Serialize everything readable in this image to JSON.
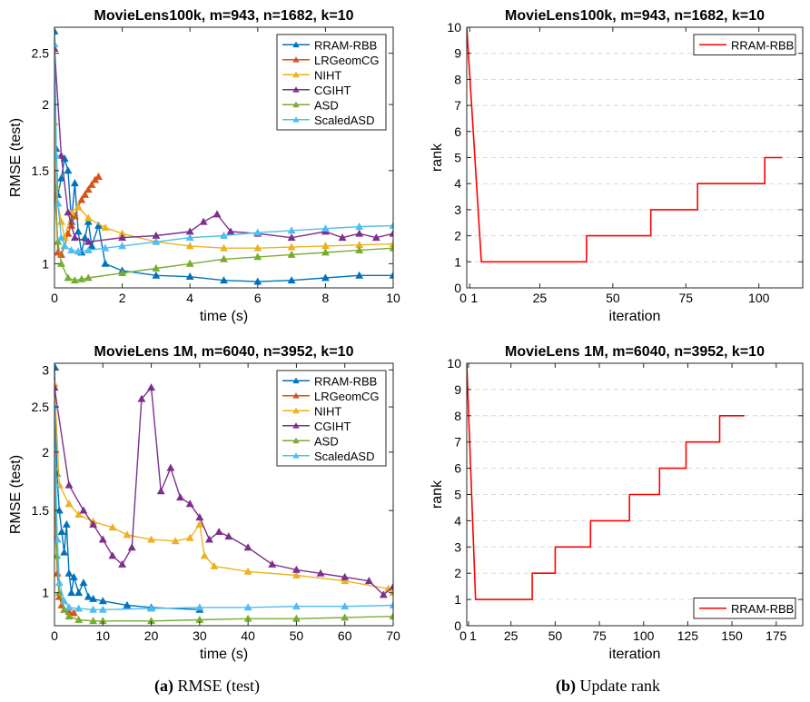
{
  "colors": {
    "RRAM-RBB": "#0072BD",
    "LRGeomCG": "#D95319",
    "NIHT": "#EDB120",
    "CGIHT": "#7E2F8E",
    "ASD": "#77AC30",
    "ScaledASD": "#4DBEEE",
    "rank_line": "#FF0000"
  },
  "captions": {
    "a_label": "(a)",
    "a_text": " RMSE (test)",
    "b_label": "(b)",
    "b_text": " Update rank"
  },
  "chart_data": [
    {
      "id": "rmse100k",
      "type": "line",
      "title": "MovieLens100k, m=943, n=1682, k=10",
      "xlabel": "time (s)",
      "ylabel": "RMSE (test)",
      "xlim": [
        0,
        10
      ],
      "ylim": [
        0.9,
        2.8
      ],
      "yscale": "log",
      "xticks": [
        0,
        2,
        4,
        6,
        8,
        10
      ],
      "xtick_labels": [
        "0",
        "2",
        "4",
        "6",
        "8",
        "10"
      ],
      "yticks": [
        1,
        1.5,
        2,
        2.5
      ],
      "ytick_labels": [
        "1",
        "1.5",
        "2",
        "2.5"
      ],
      "marker": "triangle",
      "legend_position": "top-right",
      "legend": [
        "RRAM-RBB",
        "LRGeomCG",
        "NIHT",
        "CGIHT",
        "ASD",
        "ScaledASD"
      ],
      "series": [
        {
          "name": "RRAM-RBB",
          "x": [
            0,
            0.05,
            0.1,
            0.2,
            0.3,
            0.4,
            0.5,
            0.6,
            0.7,
            0.8,
            0.9,
            1.0,
            1.1,
            1.3,
            1.5,
            2,
            3,
            4,
            5,
            6,
            7,
            8,
            9,
            10
          ],
          "y": [
            2.75,
            1.65,
            1.35,
            1.45,
            1.58,
            1.5,
            1.2,
            1.42,
            1.15,
            1.05,
            1.12,
            1.2,
            1.08,
            1.18,
            1.0,
            0.97,
            0.95,
            0.945,
            0.93,
            0.925,
            0.93,
            0.94,
            0.95,
            0.95
          ]
        },
        {
          "name": "LRGeomCG",
          "x": [
            0,
            0.1,
            0.2,
            0.3,
            0.4,
            0.5,
            0.6,
            0.7,
            0.8,
            0.9,
            1.0,
            1.1,
            1.2,
            1.3
          ],
          "y": [
            1.6,
            1.05,
            1.04,
            1.08,
            1.14,
            1.18,
            1.23,
            1.28,
            1.32,
            1.35,
            1.38,
            1.41,
            1.44,
            1.46
          ]
        },
        {
          "name": "NIHT",
          "x": [
            0,
            0.05,
            0.1,
            0.2,
            0.3,
            0.5,
            0.7,
            1,
            1.5,
            2,
            3,
            4,
            5,
            6,
            7,
            8,
            9,
            10
          ],
          "y": [
            1.85,
            1.4,
            1.3,
            1.2,
            1.12,
            1.25,
            1.28,
            1.22,
            1.17,
            1.14,
            1.1,
            1.08,
            1.07,
            1.07,
            1.075,
            1.08,
            1.085,
            1.09
          ]
        },
        {
          "name": "CGIHT",
          "x": [
            0,
            0.2,
            0.4,
            0.6,
            1,
            2,
            3,
            4,
            4.4,
            4.8,
            5.2,
            6,
            7,
            8,
            8.5,
            9,
            9.5,
            10
          ],
          "y": [
            2.55,
            1.6,
            1.25,
            1.12,
            1.1,
            1.12,
            1.13,
            1.15,
            1.2,
            1.24,
            1.15,
            1.14,
            1.12,
            1.15,
            1.12,
            1.14,
            1.12,
            1.14
          ]
        },
        {
          "name": "ASD",
          "x": [
            0,
            0.1,
            0.2,
            0.4,
            0.6,
            0.8,
            1,
            2,
            3,
            4,
            5,
            6,
            7,
            8,
            9,
            10
          ],
          "y": [
            1.4,
            1.1,
            1.0,
            0.94,
            0.93,
            0.935,
            0.94,
            0.96,
            0.98,
            1.0,
            1.02,
            1.03,
            1.04,
            1.05,
            1.06,
            1.07
          ]
        },
        {
          "name": "ScaledASD",
          "x": [
            0,
            0.05,
            0.1,
            0.2,
            0.3,
            0.5,
            0.7,
            1,
            1.5,
            2,
            3,
            4,
            5,
            6,
            7,
            8,
            9,
            10
          ],
          "y": [
            2.6,
            1.6,
            1.3,
            1.12,
            1.08,
            1.06,
            1.055,
            1.06,
            1.07,
            1.08,
            1.1,
            1.12,
            1.13,
            1.145,
            1.155,
            1.165,
            1.175,
            1.18
          ]
        }
      ]
    },
    {
      "id": "rank100k",
      "type": "line",
      "title": "MovieLens100k, m=943, n=1682, k=10",
      "xlabel": "iteration",
      "ylabel": "rank",
      "xlim": [
        0,
        115
      ],
      "ylim": [
        0,
        10
      ],
      "xticks": [
        0,
        1,
        25,
        50,
        75,
        100
      ],
      "xtick_labels": [
        "0",
        "1",
        "25",
        "50",
        "75",
        "100"
      ],
      "yticks": [
        0,
        1,
        2,
        3,
        4,
        5,
        6,
        7,
        8,
        9,
        10
      ],
      "ytick_labels": [
        "0",
        "1",
        "2",
        "3",
        "4",
        "5",
        "6",
        "7",
        "8",
        "9",
        "10"
      ],
      "grid": "horizontal dashed",
      "legend_position": "top-right",
      "legend": [
        "RRAM-RBB"
      ],
      "series": [
        {
          "name": "RRAM-RBB",
          "x": [
            0,
            5,
            41,
            41,
            63,
            63,
            79,
            79,
            102,
            102,
            108
          ],
          "y": [
            10,
            1,
            1,
            2,
            2,
            3,
            3,
            4,
            4,
            5,
            5
          ]
        }
      ]
    },
    {
      "id": "rmse1m",
      "type": "line",
      "title": "MovieLens 1M, m=6040, n=3952, k=10",
      "xlabel": "time (s)",
      "ylabel": "RMSE (test)",
      "xlim": [
        0,
        70
      ],
      "ylim": [
        0.85,
        3.1
      ],
      "yscale": "log",
      "xticks": [
        0,
        10,
        20,
        30,
        40,
        50,
        60,
        70
      ],
      "xtick_labels": [
        "0",
        "10",
        "20",
        "30",
        "40",
        "50",
        "60",
        "70"
      ],
      "yticks": [
        1,
        1.5,
        2,
        2.5,
        3
      ],
      "ytick_labels": [
        "1",
        "1.5",
        "2",
        "2.5",
        "3"
      ],
      "marker": "triangle",
      "legend_position": "top-right",
      "legend": [
        "RRAM-RBB",
        "LRGeomCG",
        "NIHT",
        "CGIHT",
        "ASD",
        "ScaledASD"
      ],
      "series": [
        {
          "name": "RRAM-RBB",
          "x": [
            0,
            0.5,
            1,
            1.5,
            2,
            2.5,
            3,
            3.5,
            4,
            5,
            6,
            7,
            8,
            10,
            15,
            20,
            30
          ],
          "y": [
            3.05,
            1.8,
            1.5,
            1.35,
            1.22,
            1.4,
            1.1,
            1.0,
            1.08,
            1.0,
            1.05,
            0.98,
            0.97,
            0.96,
            0.94,
            0.93,
            0.92
          ]
        },
        {
          "name": "LRGeomCG",
          "x": [
            0,
            0.3,
            0.6,
            1,
            1.5,
            2,
            3,
            4
          ],
          "y": [
            2.0,
            1.3,
            1.1,
            0.98,
            0.94,
            0.92,
            0.91,
            0.905
          ]
        },
        {
          "name": "NIHT",
          "x": [
            0,
            1,
            3,
            5,
            8,
            12,
            15,
            20,
            25,
            28,
            30,
            31,
            33,
            40,
            50,
            60,
            69,
            70
          ],
          "y": [
            2.8,
            1.7,
            1.55,
            1.47,
            1.42,
            1.38,
            1.33,
            1.3,
            1.29,
            1.31,
            1.4,
            1.2,
            1.14,
            1.11,
            1.09,
            1.06,
            1.02,
            1.0
          ]
        },
        {
          "name": "CGIHT",
          "x": [
            0,
            3,
            6,
            8,
            10,
            12,
            14,
            16,
            18,
            20,
            22,
            24,
            26,
            28,
            30,
            32,
            34,
            36,
            40,
            45,
            50,
            55,
            60,
            65,
            68,
            70
          ],
          "y": [
            2.75,
            1.7,
            1.5,
            1.4,
            1.3,
            1.2,
            1.15,
            1.25,
            2.6,
            2.75,
            1.65,
            1.85,
            1.6,
            1.55,
            1.45,
            1.3,
            1.35,
            1.32,
            1.25,
            1.15,
            1.12,
            1.1,
            1.08,
            1.06,
            0.99,
            1.03
          ]
        },
        {
          "name": "ASD",
          "x": [
            0,
            0.5,
            1,
            2,
            3,
            5,
            8,
            10,
            20,
            30,
            40,
            50,
            60,
            70
          ],
          "y": [
            1.85,
            1.2,
            1.0,
            0.92,
            0.89,
            0.875,
            0.87,
            0.87,
            0.87,
            0.875,
            0.88,
            0.88,
            0.885,
            0.89
          ]
        },
        {
          "name": "ScaledASD",
          "x": [
            0,
            0.3,
            0.6,
            1,
            2,
            3,
            5,
            8,
            10,
            20,
            30,
            40,
            50,
            60,
            70
          ],
          "y": [
            2.5,
            1.7,
            1.3,
            1.05,
            0.96,
            0.93,
            0.925,
            0.92,
            0.92,
            0.925,
            0.93,
            0.93,
            0.935,
            0.935,
            0.94
          ]
        }
      ]
    },
    {
      "id": "rank1m",
      "type": "line",
      "title": "MovieLens 1M, m=6040, n=3952, k=10",
      "xlabel": "iteration",
      "ylabel": "rank",
      "xlim": [
        0,
        190
      ],
      "ylim": [
        0,
        10
      ],
      "xticks": [
        0,
        1,
        25,
        50,
        75,
        100,
        125,
        150,
        175
      ],
      "xtick_labels": [
        "0",
        "1",
        "25",
        "50",
        "75",
        "100",
        "125",
        "150",
        "175"
      ],
      "yticks": [
        0,
        1,
        2,
        3,
        4,
        5,
        6,
        7,
        8,
        9,
        10
      ],
      "ytick_labels": [
        "0",
        "1",
        "2",
        "3",
        "4",
        "5",
        "6",
        "7",
        "8",
        "9",
        "10"
      ],
      "grid": "horizontal dashed",
      "legend_position": "bottom-right",
      "legend": [
        "RRAM-RBB"
      ],
      "series": [
        {
          "name": "RRAM-RBB",
          "x": [
            0,
            5,
            37,
            37,
            50,
            50,
            70,
            70,
            92,
            92,
            109,
            109,
            124,
            124,
            143,
            143,
            157
          ],
          "y": [
            10,
            1,
            1,
            2,
            2,
            3,
            3,
            4,
            4,
            5,
            5,
            6,
            6,
            7,
            7,
            8,
            8
          ]
        }
      ]
    }
  ]
}
